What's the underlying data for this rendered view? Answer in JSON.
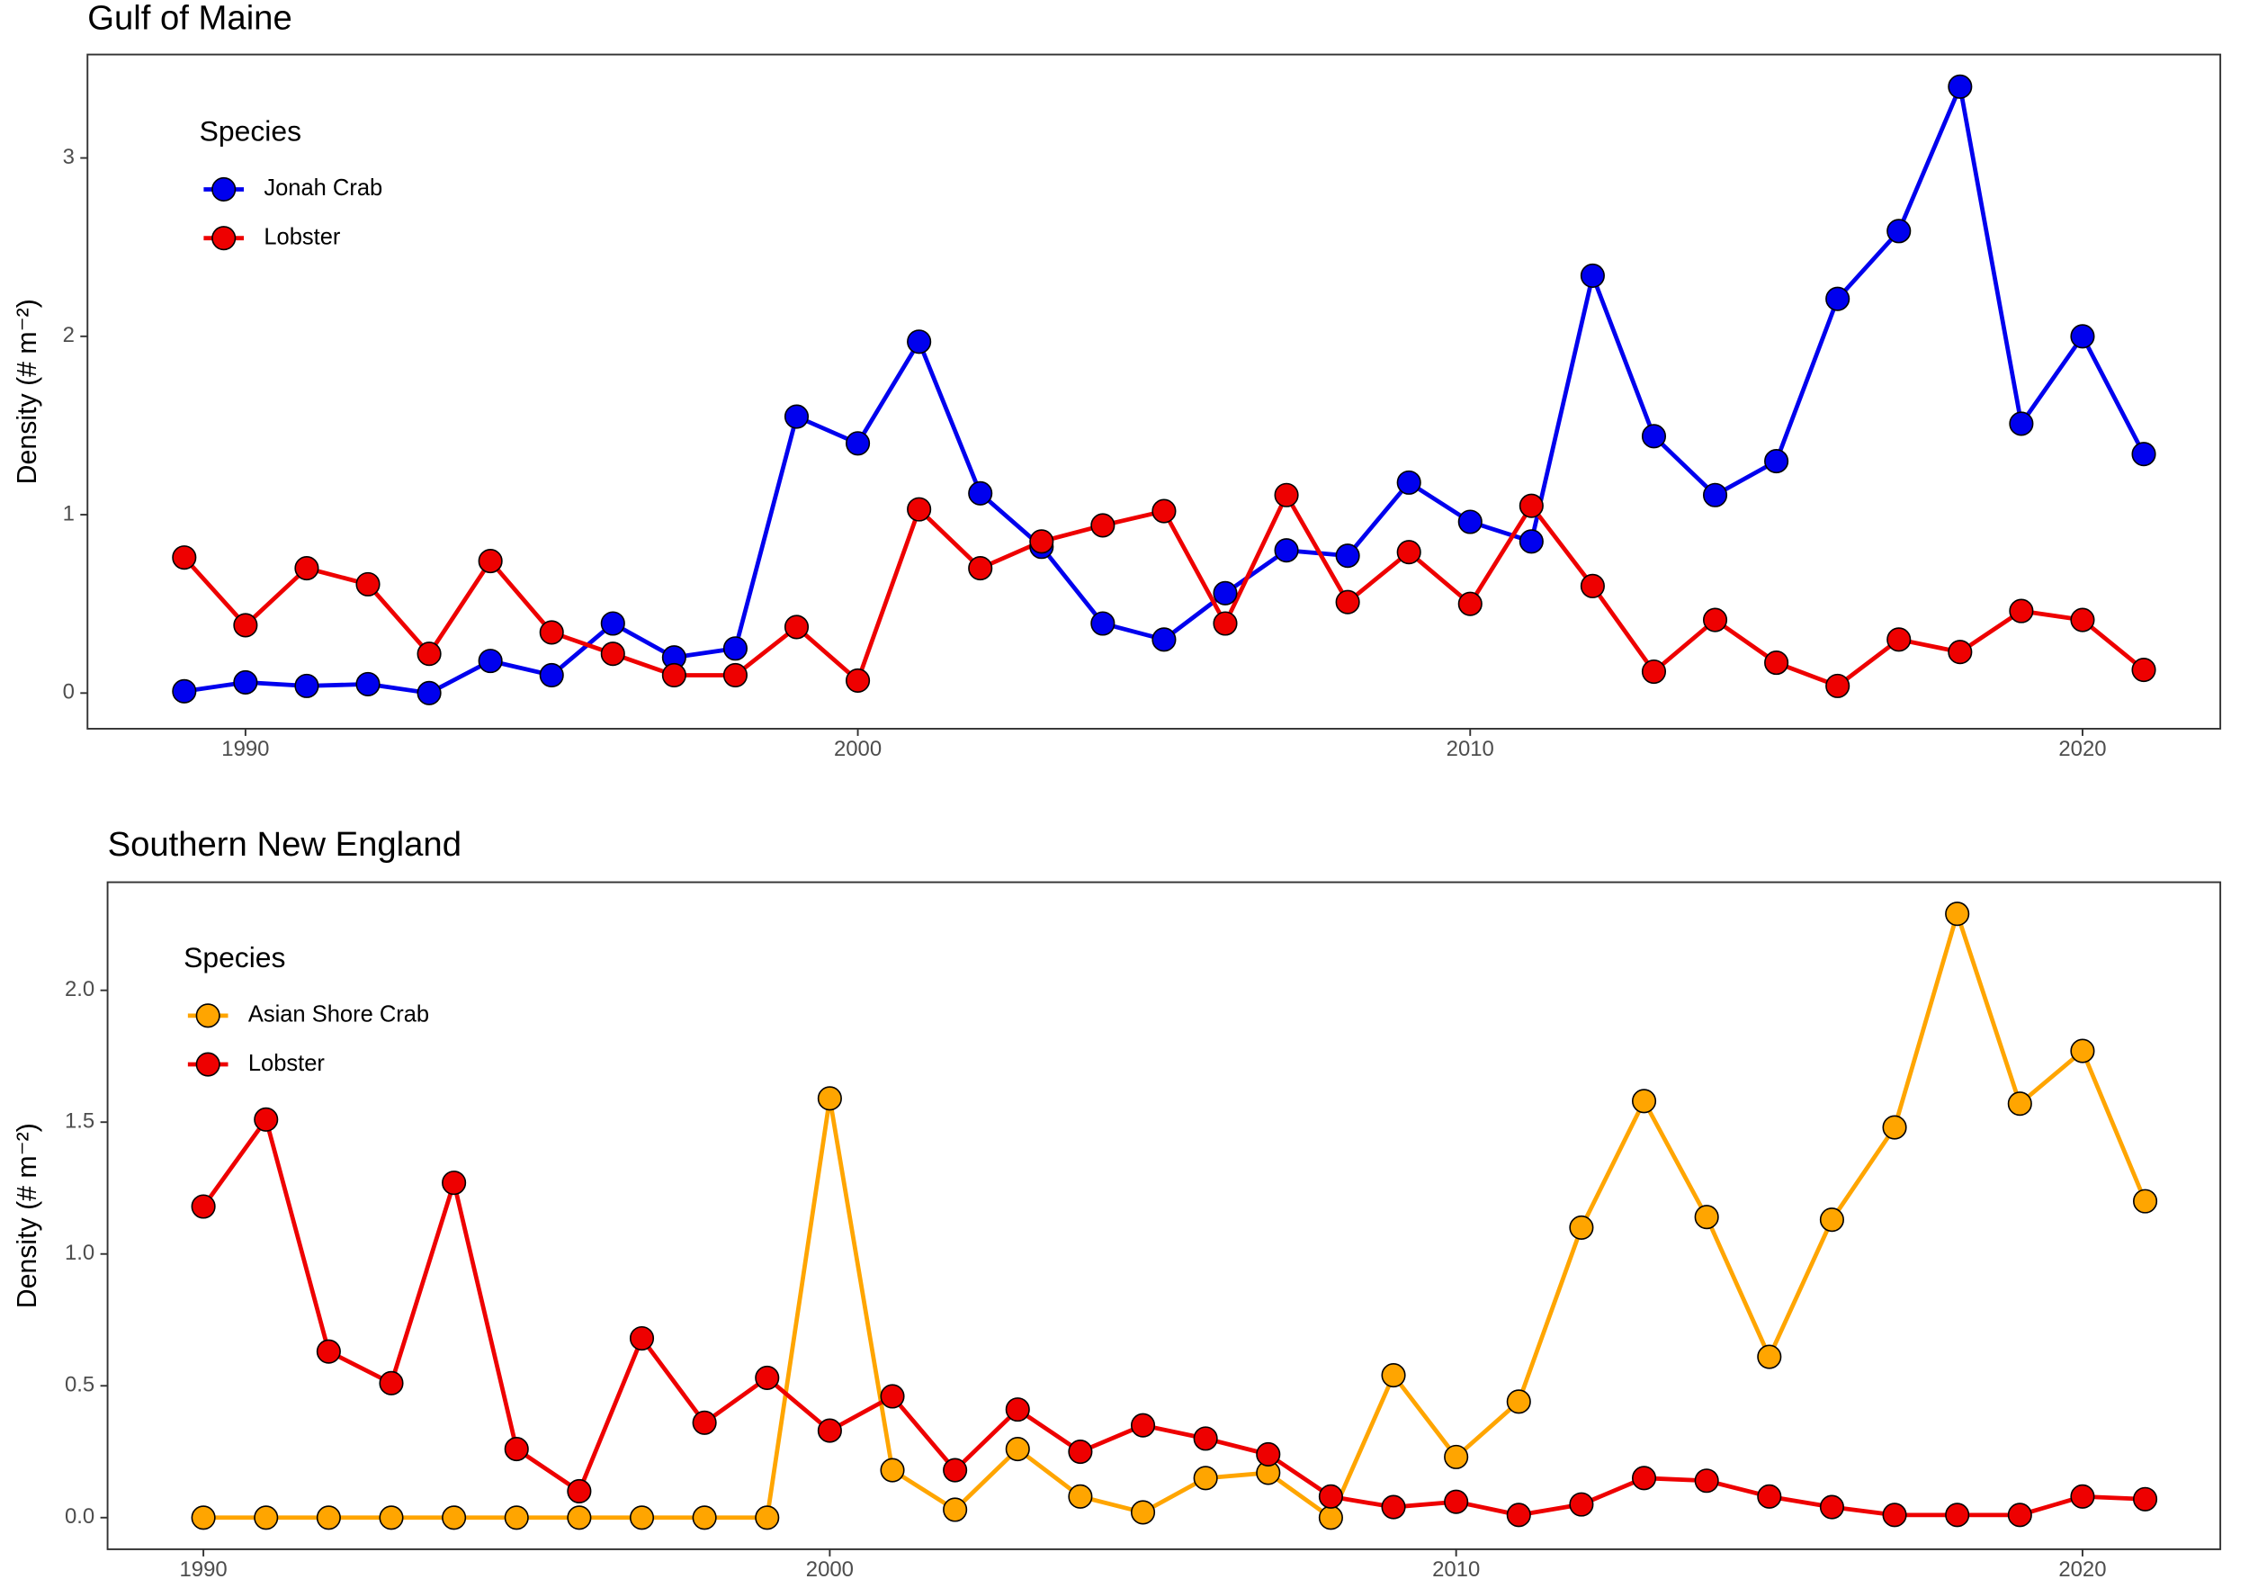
{
  "chart_data": [
    {
      "type": "line",
      "title": "Gulf of Maine",
      "y_label": "Density (# m⁻²)",
      "legend_title": "Species",
      "legend_position": "top-left",
      "grid": false,
      "x": [
        1989,
        1990,
        1991,
        1992,
        1993,
        1994,
        1995,
        1996,
        1997,
        1998,
        1999,
        2000,
        2001,
        2002,
        2003,
        2004,
        2005,
        2006,
        2007,
        2008,
        2009,
        2010,
        2011,
        2012,
        2013,
        2014,
        2015,
        2016,
        2017,
        2018,
        2019,
        2020,
        2021
      ],
      "xlim": [
        1987.42,
        2022.25
      ],
      "xticks": [
        1990,
        2000,
        2010,
        2020
      ],
      "ylim": [
        -0.2,
        3.58
      ],
      "yticks": [
        0,
        1,
        2,
        3
      ],
      "series": [
        {
          "name": "Jonah Crab",
          "color": "#0000ee",
          "values": [
            0.01,
            0.06,
            0.04,
            0.05,
            0.0,
            0.18,
            0.1,
            0.39,
            0.2,
            0.25,
            1.55,
            1.4,
            1.97,
            1.12,
            0.82,
            0.39,
            0.3,
            0.56,
            0.8,
            0.77,
            1.18,
            0.96,
            0.85,
            2.34,
            1.44,
            1.11,
            1.3,
            2.21,
            2.59,
            3.4,
            1.51,
            2.0,
            1.34
          ]
        },
        {
          "name": "Lobster",
          "color": "#ee0000",
          "values": [
            0.76,
            0.38,
            0.7,
            0.61,
            0.22,
            0.74,
            0.34,
            0.22,
            0.1,
            0.1,
            0.37,
            0.07,
            1.03,
            0.7,
            0.85,
            0.94,
            1.02,
            0.39,
            1.11,
            0.51,
            0.79,
            0.5,
            1.05,
            0.6,
            0.12,
            0.41,
            0.17,
            0.04,
            0.3,
            0.23,
            0.46,
            0.41,
            0.13
          ]
        }
      ]
    },
    {
      "type": "line",
      "title": "Southern New England",
      "y_label": "Density (# m⁻²)",
      "legend_title": "Species",
      "legend_position": "top-left",
      "grid": false,
      "x": [
        1990,
        1991,
        1992,
        1993,
        1994,
        1995,
        1996,
        1997,
        1998,
        1999,
        2000,
        2001,
        2002,
        2003,
        2004,
        2005,
        2006,
        2007,
        2008,
        2009,
        2010,
        2011,
        2012,
        2013,
        2014,
        2015,
        2016,
        2017,
        2018,
        2019,
        2020,
        2021
      ],
      "xlim": [
        1988.47,
        2022.2
      ],
      "xticks": [
        1990,
        2000,
        2010,
        2020
      ],
      "ylim": [
        -0.12,
        2.41
      ],
      "yticks": [
        {
          "value": 0,
          "label": "0.0"
        },
        0.5,
        {
          "value": 1,
          "label": "1.0"
        },
        1.5,
        {
          "value": 2,
          "label": "2.0"
        }
      ],
      "series": [
        {
          "name": "Asian Shore Crab",
          "color": "#ffa500",
          "values": [
            0,
            0,
            0,
            0,
            0,
            0,
            0,
            0,
            0,
            0,
            1.59,
            0.18,
            0.03,
            0.26,
            0.08,
            0.02,
            0.15,
            0.17,
            0.0,
            0.54,
            0.23,
            0.44,
            1.1,
            1.58,
            1.14,
            0.61,
            1.13,
            1.48,
            2.29,
            1.57,
            1.77,
            1.2
          ]
        },
        {
          "name": "Lobster",
          "color": "#ee0000",
          "values": [
            1.18,
            1.51,
            0.63,
            0.51,
            1.27,
            0.26,
            0.1,
            0.68,
            0.36,
            0.53,
            0.33,
            0.46,
            0.18,
            0.41,
            0.25,
            0.35,
            0.3,
            0.24,
            0.08,
            0.04,
            0.06,
            0.01,
            0.05,
            0.15,
            0.14,
            0.08,
            0.04,
            0.01,
            0.01,
            0.01,
            0.08,
            0.07
          ]
        }
      ]
    }
  ]
}
